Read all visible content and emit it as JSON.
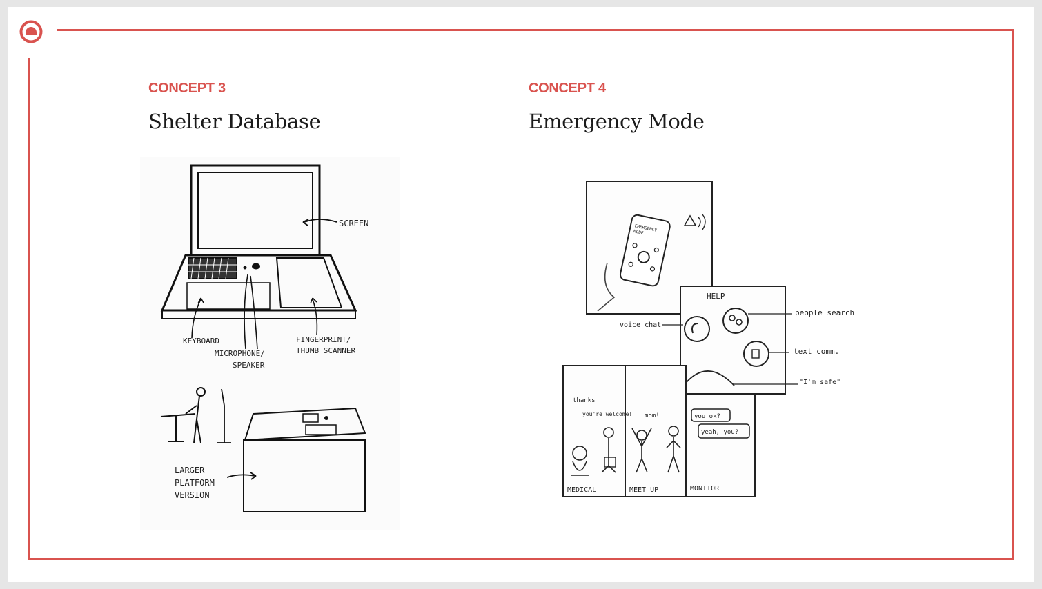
{
  "concepts": [
    {
      "label": "CONCEPT 3",
      "title": "Shelter Database",
      "sketch_notes": {
        "screen": "SCREEN",
        "keyboard": "KEYBOARD",
        "microphone": "MICROPHONE/",
        "speaker": "SPEAKER",
        "fingerprint": "FINGERPRINT/",
        "thumb_scanner": "THUMB SCANNER",
        "larger": "LARGER",
        "platform": "PLATFORM",
        "version": "VERSION"
      }
    },
    {
      "label": "CONCEPT 4",
      "title": "Emergency Mode",
      "sketch_notes": {
        "phone_line1": "EMERGENCY",
        "phone_line2": "MODE",
        "help": "HELP",
        "voice_chat": "voice chat",
        "people_search": "people search",
        "text_comm": "text comm.",
        "im_safe": "\"I'm safe\"",
        "thanks": "thanks",
        "youre_welcome": "you're welcome!",
        "mom": "mom!",
        "you_ok": "you ok?",
        "yeah_you": "yeah, you?",
        "medical": "MEDICAL",
        "meet_up": "MEET UP",
        "monitor": "MONITOR"
      }
    }
  ],
  "colors": {
    "accent": "#d9534f",
    "title": "#1b1b1b",
    "background": "#ffffff",
    "outer": "#e6e6e6"
  }
}
